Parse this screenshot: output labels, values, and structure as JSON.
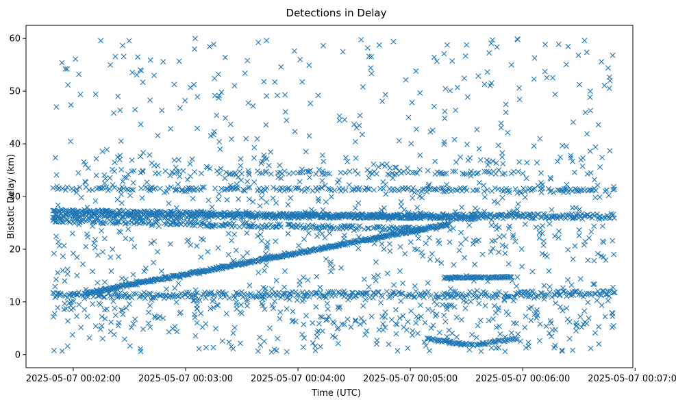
{
  "chart_data": {
    "type": "scatter",
    "title": "Detections in Delay",
    "xlabel": "Time (UTC)",
    "ylabel": "Bistatic Delay (km)",
    "marker": "x",
    "color": "#1f77b4",
    "grid": false,
    "legend": "none",
    "xlim_minutes": [
      1.58,
      6.98
    ],
    "ylim": [
      -2.5,
      62.5
    ],
    "xticks": [
      {
        "minute": 2,
        "label": "2025-05-07 00:02:00"
      },
      {
        "minute": 3,
        "label": "2025-05-07 00:03:00"
      },
      {
        "minute": 4,
        "label": "2025-05-07 00:04:00"
      },
      {
        "minute": 5,
        "label": "2025-05-07 00:05:00"
      },
      {
        "minute": 6,
        "label": "2025-05-07 00:06:00"
      },
      {
        "minute": 7,
        "label": "2025-05-07 00:07:00"
      }
    ],
    "yticks": [
      {
        "value": 0,
        "label": "0"
      },
      {
        "value": 10,
        "label": "10"
      },
      {
        "value": 20,
        "label": "20"
      },
      {
        "value": 30,
        "label": "30"
      },
      {
        "value": 40,
        "label": "40"
      },
      {
        "value": 50,
        "label": "50"
      },
      {
        "value": 60,
        "label": "60"
      }
    ],
    "time_range_minutes": [
      1.82,
      6.82
    ],
    "series": [
      {
        "name": "detections",
        "points": [
          [
            1.85,
            47.0
          ],
          [
            1.9,
            55.4
          ],
          [
            1.93,
            54.2
          ],
          [
            1.98,
            47.4
          ],
          [
            2.02,
            56.1
          ],
          [
            2.05,
            53.2
          ],
          [
            2.2,
            49.4
          ],
          [
            2.33,
            55.0
          ],
          [
            2.45,
            56.6
          ],
          [
            2.62,
            51.7
          ],
          [
            2.72,
            53.0
          ],
          [
            2.8,
            55.6
          ],
          [
            2.95,
            46.8
          ],
          [
            3.08,
            58.0
          ],
          [
            3.25,
            58.9
          ],
          [
            3.4,
            43.7
          ],
          [
            3.55,
            55.8
          ],
          [
            3.72,
            59.6
          ],
          [
            3.85,
            54.6
          ],
          [
            4.02,
            56.0
          ],
          [
            4.18,
            49.2
          ],
          [
            4.4,
            57.5
          ],
          [
            4.62,
            58.2
          ],
          [
            4.85,
            59.4
          ],
          [
            5.05,
            53.8
          ],
          [
            5.3,
            57.1
          ],
          [
            5.5,
            58.8
          ],
          [
            5.72,
            59.1
          ],
          [
            5.9,
            55.0
          ],
          [
            6.1,
            52.3
          ],
          [
            6.32,
            58.9
          ],
          [
            6.55,
            59.6
          ],
          [
            6.7,
            55.6
          ],
          [
            6.8,
            56.8
          ],
          [
            6.76,
            54.4
          ],
          [
            2.3,
            38.9
          ],
          [
            2.6,
            43.7
          ],
          [
            2.9,
            36.9
          ],
          [
            3.3,
            40.4
          ],
          [
            3.7,
            37.3
          ],
          [
            4.1,
            41.5
          ],
          [
            4.5,
            43.7
          ],
          [
            4.9,
            40.6
          ],
          [
            5.3,
            39.9
          ],
          [
            5.7,
            36.6
          ],
          [
            6.1,
            39.6
          ],
          [
            6.45,
            44.1
          ],
          [
            6.6,
            38.6
          ],
          [
            5.25,
            2.5
          ],
          [
            5.35,
            2.1
          ],
          [
            5.45,
            1.8
          ],
          [
            5.55,
            1.9
          ],
          [
            5.65,
            2.2
          ],
          [
            5.75,
            2.7
          ],
          [
            5.98,
            2.5
          ],
          [
            6.05,
            2.3
          ],
          [
            6.15,
            2.6
          ],
          [
            6.28,
            1.3
          ],
          [
            6.35,
            0.8
          ],
          [
            5.17,
            0.7
          ],
          [
            1.95,
            1.6
          ],
          [
            2.6,
            0.6
          ],
          [
            3.12,
            1.1
          ],
          [
            3.7,
            2.5
          ],
          [
            4.2,
            1.5
          ],
          [
            4.7,
            2.0
          ],
          [
            2.1,
            8.5
          ],
          [
            2.4,
            5.5
          ],
          [
            2.8,
            6.9
          ],
          [
            3.15,
            5.2
          ],
          [
            3.5,
            7.8
          ],
          [
            3.95,
            6.3
          ],
          [
            4.35,
            4.9
          ],
          [
            4.75,
            7.2
          ],
          [
            5.05,
            6.0
          ],
          [
            5.6,
            5.5
          ],
          [
            5.9,
            4.1
          ],
          [
            6.4,
            6.7
          ],
          [
            6.58,
            9.9
          ],
          [
            6.8,
            7.8
          ],
          [
            2.0,
            19.2
          ],
          [
            2.35,
            20.0
          ],
          [
            2.75,
            19.5
          ],
          [
            3.1,
            20.6
          ],
          [
            3.45,
            19.8
          ],
          [
            3.8,
            21.5
          ],
          [
            4.25,
            18.1
          ],
          [
            4.6,
            22.0
          ],
          [
            5.1,
            19.4
          ],
          [
            5.45,
            21.0
          ],
          [
            5.85,
            20.5
          ],
          [
            6.2,
            18.9
          ],
          [
            6.72,
            21.3
          ],
          [
            6.81,
            19.0
          ],
          [
            2.55,
            46.5
          ],
          [
            3.6,
            47.2
          ],
          [
            4.75,
            48.1
          ],
          [
            5.85,
            47.5
          ]
        ]
      }
    ],
    "tracks": [
      {
        "name": "track-31",
        "from": [
          1.82,
          31.5
        ],
        "to": [
          6.82,
          31.2
        ],
        "step": 0.014,
        "jitter": 0.35,
        "keep": 0.55
      },
      {
        "name": "track-26",
        "from": [
          1.82,
          26.3
        ],
        "to": [
          6.82,
          26.3
        ],
        "step": 0.009,
        "jitter": 0.45,
        "keep": 0.9
      },
      {
        "name": "track-27-down",
        "from": [
          1.82,
          27.3
        ],
        "to": [
          5.6,
          25.9
        ],
        "step": 0.009,
        "jitter": 0.3,
        "keep": 0.8
      },
      {
        "name": "track-25-down",
        "from": [
          1.82,
          25.4
        ],
        "to": [
          5.1,
          23.8
        ],
        "step": 0.01,
        "jitter": 0.35,
        "keep": 0.7
      },
      {
        "name": "track-rising",
        "from": [
          2.1,
          11.6
        ],
        "to": [
          5.35,
          24.8
        ],
        "step": 0.0065,
        "jitter": 0.25,
        "keep": 0.95
      },
      {
        "name": "track-11",
        "from": [
          1.82,
          11.2
        ],
        "to": [
          6.82,
          11.5
        ],
        "step": 0.01,
        "jitter": 0.6,
        "keep": 0.75
      },
      {
        "name": "track-14-right",
        "from": [
          5.3,
          14.6
        ],
        "to": [
          5.9,
          14.7
        ],
        "step": 0.008,
        "jitter": 0.15,
        "keep": 0.95
      },
      {
        "name": "track-34",
        "from": [
          2.5,
          34.6
        ],
        "to": [
          6.0,
          34.5
        ],
        "step": 0.02,
        "jitter": 0.3,
        "keep": 0.45
      },
      {
        "name": "track-2-dip",
        "from": [
          5.15,
          3.0
        ],
        "to": [
          5.55,
          1.8
        ],
        "step": 0.01,
        "jitter": 0.2,
        "keep": 0.9
      },
      {
        "name": "track-2-rise",
        "from": [
          5.55,
          1.8
        ],
        "to": [
          5.95,
          3.0
        ],
        "step": 0.01,
        "jitter": 0.2,
        "keep": 0.9
      }
    ],
    "clutter_count": 1100
  }
}
